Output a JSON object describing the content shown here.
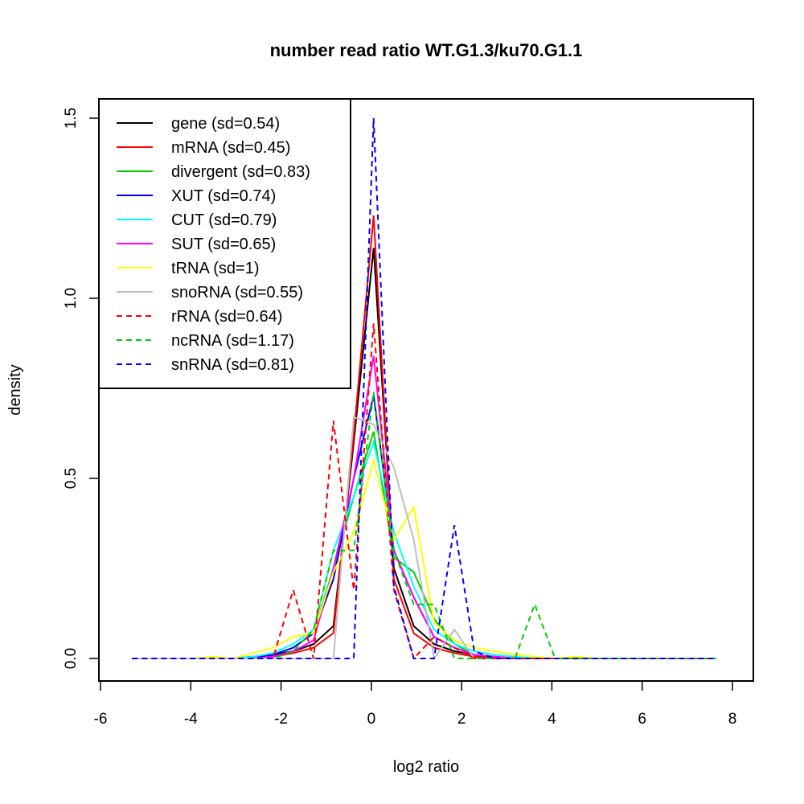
{
  "chart_data": {
    "type": "line",
    "title": "number read ratio WT.G1.3/ku70.G1.1",
    "xlabel": "log2 ratio",
    "ylabel": "density",
    "xlim": [
      -6,
      8
    ],
    "ylim": [
      0,
      1.5
    ],
    "xticks": [
      "-6",
      "-4",
      "-2",
      "0",
      "2",
      "4",
      "6",
      "8"
    ],
    "xtick_values": [
      -6,
      -4,
      -2,
      0,
      2,
      4,
      6,
      8
    ],
    "yticks": [
      "0.0",
      "0.5",
      "1.0",
      "1.5"
    ],
    "ytick_values": [
      0,
      0.5,
      1,
      1.5
    ],
    "grid": false,
    "legend_position": "top-left",
    "x": [
      -5.3,
      -4.85,
      -4.41,
      -3.96,
      -3.51,
      -3.07,
      -2.62,
      -2.18,
      -1.73,
      -1.28,
      -0.84,
      -0.39,
      0.05,
      0.5,
      0.94,
      1.39,
      1.84,
      2.28,
      2.73,
      3.18,
      3.62,
      4.07,
      4.52,
      4.96,
      5.41,
      5.86,
      6.3,
      6.75,
      7.2,
      7.64
    ],
    "series": [
      {
        "name": "gene (sd=0.54)",
        "color": "#000000",
        "dash": false,
        "values": [
          0,
          0,
          0,
          0,
          0,
          0,
          0,
          0.01,
          0.02,
          0.04,
          0.09,
          0.6,
          1.14,
          0.25,
          0.09,
          0.04,
          0.02,
          0.01,
          0,
          0,
          0,
          0,
          0,
          0,
          0,
          0,
          0,
          0,
          0,
          0
        ]
      },
      {
        "name": "mRNA (sd=0.45)",
        "color": "#ff0000",
        "dash": false,
        "values": [
          0,
          0,
          0,
          0,
          0,
          0,
          0,
          0.005,
          0.015,
          0.03,
          0.07,
          0.62,
          1.23,
          0.22,
          0.07,
          0.03,
          0.015,
          0.005,
          0,
          0,
          0,
          0,
          0,
          0,
          0,
          0,
          0,
          0,
          0,
          0
        ]
      },
      {
        "name": "divergent (sd=0.83)",
        "color": "#00cd00",
        "dash": false,
        "values": [
          0,
          0,
          0,
          0,
          0,
          0,
          0.005,
          0.01,
          0.03,
          0.07,
          0.25,
          0.45,
          0.63,
          0.28,
          0.24,
          0.11,
          0.04,
          0.01,
          0.005,
          0,
          0,
          0,
          0,
          0,
          0,
          0,
          0,
          0,
          0,
          0
        ]
      },
      {
        "name": "XUT (sd=0.74)",
        "color": "#0000ff",
        "dash": false,
        "values": [
          0,
          0,
          0,
          0,
          0,
          0,
          0.005,
          0.01,
          0.03,
          0.07,
          0.22,
          0.5,
          0.73,
          0.3,
          0.17,
          0.06,
          0.03,
          0.01,
          0.005,
          0,
          0,
          0,
          0,
          0,
          0,
          0,
          0,
          0,
          0,
          0
        ]
      },
      {
        "name": "CUT (sd=0.79)",
        "color": "#00ffff",
        "dash": false,
        "values": [
          0,
          0,
          0,
          0,
          0,
          0,
          0.005,
          0.015,
          0.04,
          0.08,
          0.3,
          0.45,
          0.6,
          0.35,
          0.2,
          0.08,
          0.04,
          0.02,
          0.01,
          0.005,
          0,
          0,
          0,
          0,
          0,
          0,
          0,
          0,
          0,
          0
        ]
      },
      {
        "name": "SUT (sd=0.65)",
        "color": "#ff00ff",
        "dash": false,
        "values": [
          0,
          0,
          0,
          0,
          0,
          0,
          0,
          0.005,
          0.02,
          0.05,
          0.25,
          0.5,
          0.84,
          0.3,
          0.17,
          0.06,
          0.03,
          0.01,
          0.005,
          0,
          0,
          0,
          0,
          0,
          0,
          0,
          0,
          0,
          0,
          0
        ]
      },
      {
        "name": "tRNA (sd=1)",
        "color": "#ffff00",
        "dash": false,
        "values": [
          0,
          0,
          0,
          0,
          0.005,
          0,
          0.015,
          0.03,
          0.06,
          0.07,
          0.24,
          0.35,
          0.55,
          0.33,
          0.42,
          0.1,
          0.05,
          0.03,
          0.02,
          0.01,
          0.005,
          0,
          0.005,
          0,
          0,
          0,
          0,
          0,
          0,
          0
        ]
      },
      {
        "name": "snoRNA (sd=0.55)",
        "color": "#bebebe",
        "dash": false,
        "values": [
          0,
          0,
          0,
          0,
          0,
          0,
          0,
          0,
          0,
          0,
          0,
          0.67,
          0.65,
          0.53,
          0.33,
          0,
          0.08,
          0,
          0,
          0,
          0,
          0,
          0,
          0,
          0,
          0,
          0,
          0,
          0,
          0
        ]
      },
      {
        "name": "rRNA (sd=0.64)",
        "color": "#ff0000",
        "dash": true,
        "values": [
          0,
          0,
          0,
          0,
          0,
          0,
          0,
          0,
          0.19,
          0,
          0.66,
          0.19,
          0.93,
          0.19,
          0,
          0.06,
          0.03,
          0,
          0,
          0,
          0,
          0,
          0,
          0,
          0,
          0,
          0,
          0,
          0,
          0
        ]
      },
      {
        "name": "ncRNA (sd=1.17)",
        "color": "#00cd00",
        "dash": true,
        "values": [
          0,
          0,
          0,
          0,
          0,
          0,
          0,
          0,
          0.02,
          0.08,
          0.3,
          0.3,
          0.74,
          0.3,
          0.15,
          0.15,
          0,
          0,
          0,
          0,
          0.15,
          0,
          0,
          0,
          0,
          0,
          0,
          0,
          0,
          0
        ]
      },
      {
        "name": "snRNA (sd=0.81)",
        "color": "#0000ff",
        "dash": true,
        "values": [
          0,
          0,
          0,
          0,
          0,
          0,
          0,
          0,
          0,
          0,
          0,
          0,
          1.5,
          0.2,
          0,
          0,
          0.37,
          0.02,
          0,
          0,
          0,
          0,
          0,
          0,
          0,
          0,
          0,
          0,
          0,
          0
        ]
      }
    ]
  }
}
